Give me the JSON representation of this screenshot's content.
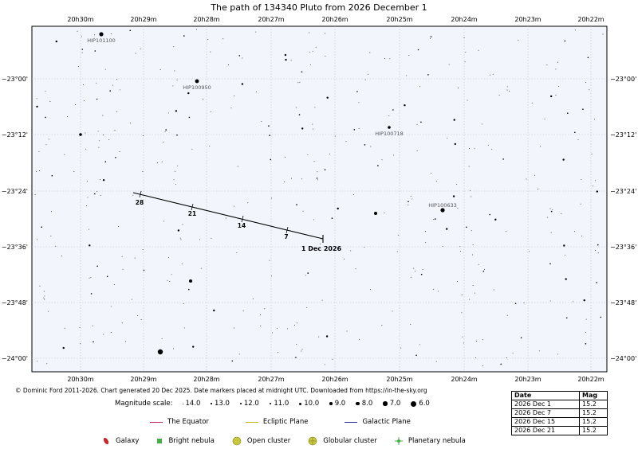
{
  "title": "The path of 134340 Pluto from 2026 December 1",
  "ra_labels": [
    "20h30m",
    "20h29m",
    "20h28m",
    "20h27m",
    "20h26m",
    "20h25m",
    "20h24m",
    "20h23m",
    "20h22m"
  ],
  "dec_labels": [
    "−23°00'",
    "−23°12'",
    "−23°24'",
    "−23°36'",
    "−23°48'",
    "−24°00'"
  ],
  "path": {
    "date_markers": [
      "28",
      "21",
      "14",
      "7"
    ],
    "start_label": "1 Dec 2026",
    "line_color": "#000000"
  },
  "named_stars": [
    "HIP101100",
    "HIP100950",
    "HIP100718",
    "HIP100633"
  ],
  "credit": "© Dominic Ford 2011-2026. Chart generated 20 Dec 2025. Date markers placed at midnight UTC. Downloaded from https://in-the-sky.org",
  "magnitude_scale": {
    "label": "Magnitude scale:",
    "items": [
      "14.0",
      "13.0",
      "12.0",
      "11.0",
      "10.0",
      "9.0",
      "8.0",
      "7.0",
      "6.0"
    ]
  },
  "line_legend": [
    {
      "label": "The Equator",
      "color": "#c0306a"
    },
    {
      "label": "Ecliptic Plane",
      "color": "#c8b428"
    },
    {
      "label": "Galactic Plane",
      "color": "#3030a0"
    }
  ],
  "object_legend": [
    {
      "label": "Galaxy",
      "icon": "galaxy-icon",
      "color": "#c82828"
    },
    {
      "label": "Bright nebula",
      "icon": "bright-nebula-icon",
      "color": "#40b040"
    },
    {
      "label": "Open cluster",
      "icon": "open-cluster-icon",
      "color": "#c8c840"
    },
    {
      "label": "Globular cluster",
      "icon": "globular-cluster-icon",
      "color": "#c8c840"
    },
    {
      "label": "Planetary nebula",
      "icon": "planetary-nebula-icon",
      "color": "#40b040"
    }
  ],
  "ephemeris": {
    "headers": [
      "Date",
      "Mag"
    ],
    "rows": [
      [
        "2026 Dec 1",
        "15.2"
      ],
      [
        "2026 Dec 7",
        "15.2"
      ],
      [
        "2026 Dec 15",
        "15.2"
      ],
      [
        "2026 Dec 21",
        "15.2"
      ]
    ]
  },
  "colors": {
    "map_background": "#f2f5fc",
    "grid": "#b8c0d4",
    "star": "#000000",
    "label_grey": "#555555"
  }
}
